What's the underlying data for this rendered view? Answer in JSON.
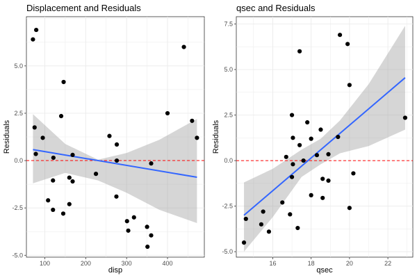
{
  "chart_data": [
    {
      "type": "scatter",
      "title": "Displacement and Residuals",
      "xlabel": "disp",
      "ylabel": "Residuals",
      "xlim": [
        55,
        490
      ],
      "ylim": [
        -5.1,
        7.6
      ],
      "xticks": [
        100,
        200,
        300,
        400
      ],
      "yticks": [
        -5.0,
        -2.5,
        0.0,
        2.5,
        5.0
      ],
      "ytick_labels": [
        "-5.0",
        "-2.5",
        "0.0",
        "2.5",
        "5.0"
      ],
      "grid": true,
      "points": {
        "x": [
          71,
          79,
          75,
          78,
          95,
          108,
          120,
          121,
          120,
          140,
          145,
          146,
          160,
          160,
          168,
          168,
          225,
          258,
          276,
          276,
          275,
          301,
          304,
          318,
          350,
          351,
          360,
          400,
          440,
          460,
          472,
          360
        ],
        "y": [
          6.4,
          6.9,
          1.75,
          0.35,
          1.2,
          -2.1,
          -1.05,
          0.15,
          -2.6,
          2.35,
          -2.8,
          4.15,
          -0.9,
          -2.3,
          0.3,
          -1.1,
          -0.7,
          1.3,
          0.85,
          0.0,
          -1.9,
          -3.2,
          -3.7,
          -3.0,
          -3.5,
          -4.55,
          -3.95,
          2.5,
          6.0,
          2.1,
          1.2,
          -0.15
        ]
      },
      "fit": {
        "x": [
          71,
          472
        ],
        "y": [
          0.58,
          -0.88
        ]
      },
      "band_upper": [
        2.45,
        0.88,
        0.05,
        0.4,
        1.1,
        2.2
      ],
      "band_lower": [
        -1.2,
        -0.65,
        -1.05,
        -1.7,
        -2.6,
        -3.3
      ],
      "band_x": [
        71,
        150,
        230,
        300,
        380,
        472
      ],
      "reference_line": {
        "y": 0,
        "style": "dashed",
        "color": "#ff0000"
      },
      "colors": {
        "points": "#000000",
        "fit": "#3366ff",
        "band": "#999999",
        "reference": "#ff0000"
      }
    },
    {
      "type": "scatter",
      "title": "qsec and Residuals",
      "xlabel": "qsec",
      "ylabel": "Residuals",
      "xlim": [
        14.1,
        23.3
      ],
      "ylim": [
        -5.3,
        7.9
      ],
      "xticks": [
        16,
        18,
        20,
        22
      ],
      "yticks": [
        -5.0,
        -2.5,
        0.0,
        2.5,
        5.0,
        7.5
      ],
      "ytick_labels": [
        "-5.0",
        "-2.5",
        "0.0",
        "2.5",
        "5.0",
        "7.5"
      ],
      "grid": true,
      "points": {
        "x": [
          14.5,
          14.6,
          15.4,
          15.5,
          15.8,
          16.5,
          16.7,
          16.9,
          17.0,
          17.0,
          17.05,
          17.3,
          17.4,
          17.4,
          17.6,
          17.8,
          18.0,
          18.0,
          18.3,
          18.5,
          18.6,
          18.6,
          18.9,
          18.9,
          19.4,
          19.5,
          19.9,
          20.0,
          20.0,
          20.2,
          22.9,
          17.05
        ],
        "y": [
          -4.5,
          -3.2,
          -3.5,
          -2.8,
          -3.9,
          -2.3,
          0.2,
          -2.95,
          2.5,
          -0.9,
          -0.2,
          -3.7,
          6.0,
          0.85,
          0.0,
          2.1,
          1.2,
          -1.9,
          0.3,
          1.7,
          -1.0,
          -2.05,
          -1.1,
          0.35,
          1.3,
          6.9,
          6.4,
          4.15,
          -2.6,
          -0.7,
          2.35,
          1.25
        ]
      },
      "fit": {
        "x": [
          14.5,
          22.9
        ],
        "y": [
          -3.0,
          4.55
        ]
      },
      "band_x": [
        14.5,
        16.0,
        17.5,
        18.5,
        19.5,
        21.0,
        22.9
      ],
      "band_upper": [
        -1.2,
        -0.45,
        0.6,
        1.2,
        2.2,
        4.2,
        7.4
      ],
      "band_lower": [
        -5.0,
        -3.1,
        -0.9,
        -0.2,
        0.4,
        0.8,
        1.7
      ],
      "reference_line": {
        "y": 0,
        "style": "dashed",
        "color": "#ff0000"
      },
      "colors": {
        "points": "#000000",
        "fit": "#3366ff",
        "band": "#999999",
        "reference": "#ff0000"
      }
    }
  ]
}
